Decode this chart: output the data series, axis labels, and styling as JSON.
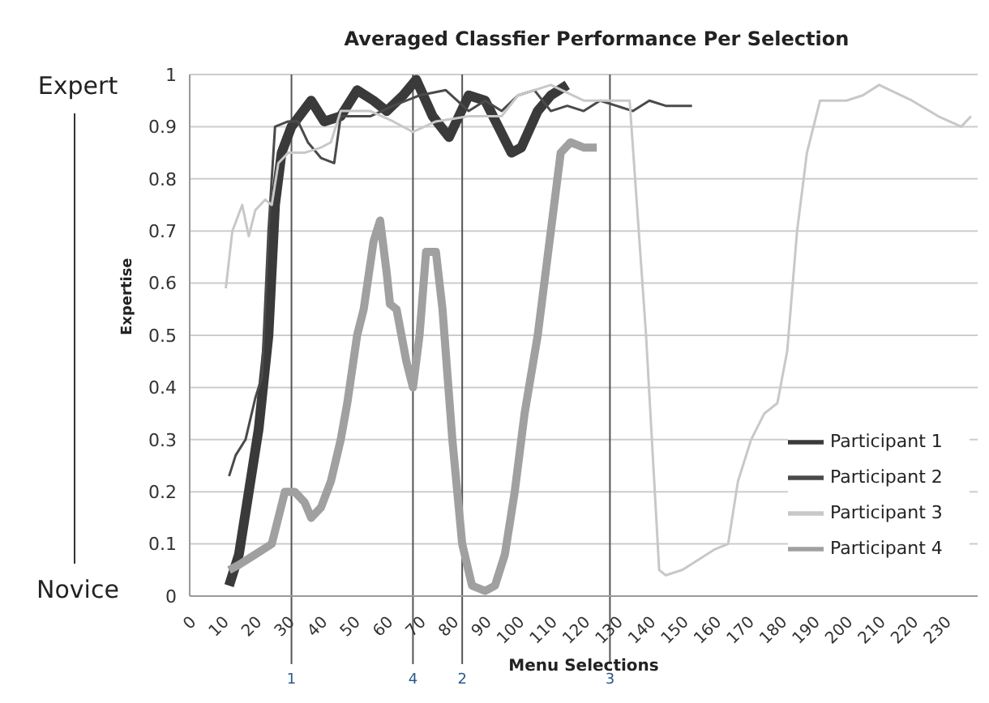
{
  "chart_data": {
    "type": "line",
    "title": "Averaged Classfier Performance Per Selection",
    "xlabel": "Menu Selections",
    "ylabel": "Expertise",
    "annotations": [
      "Expert",
      "Novice",
      {
        "text": "1",
        "x": 31
      },
      {
        "text": "4",
        "x": 68
      },
      {
        "text": "2",
        "x": 83
      },
      "3"
    ],
    "xlim": [
      0,
      240
    ],
    "xticks": [
      0,
      10,
      20,
      30,
      40,
      50,
      60,
      70,
      80,
      90,
      100,
      110,
      120,
      130,
      140,
      150,
      160,
      170,
      180,
      190,
      200,
      210,
      220,
      230
    ],
    "ylim": [
      0,
      1
    ],
    "yticks": [
      0,
      0.1,
      0.2,
      0.3,
      0.4,
      0.5,
      0.6,
      0.7,
      0.8,
      0.9,
      1
    ],
    "grid": "y",
    "legend": "bottom right",
    "marker": "none",
    "ref_lines": [
      {
        "axis": "x",
        "value": 31,
        "color": "#555555"
      },
      {
        "axis": "x",
        "value": 68,
        "color": "#555555"
      },
      {
        "axis": "x",
        "value": 83,
        "color": "#555555"
      },
      {
        "axis": "x",
        "value": 128,
        "color": "#555555"
      }
    ],
    "series": [
      {
        "name": "Participant 1",
        "color": "#3a3a3a",
        "x": [
          12,
          15,
          18,
          21,
          24,
          26,
          28,
          31,
          37,
          41,
          46,
          51,
          56,
          60,
          65,
          69,
          74,
          79,
          85,
          90,
          94,
          98,
          101,
          106,
          110,
          115
        ],
        "values": [
          0.02,
          0.08,
          0.2,
          0.32,
          0.5,
          0.75,
          0.85,
          0.9,
          0.95,
          0.91,
          0.92,
          0.97,
          0.95,
          0.93,
          0.96,
          0.99,
          0.92,
          0.88,
          0.96,
          0.95,
          0.9,
          0.85,
          0.86,
          0.93,
          0.96,
          0.98
        ]
      },
      {
        "name": "Participant 2",
        "color": "#4a4a4a",
        "x": [
          12,
          14,
          17,
          20,
          22,
          24,
          26,
          30,
          33,
          36,
          40,
          44,
          46,
          55,
          62,
          70,
          78,
          85,
          90,
          95,
          100,
          105,
          110,
          115,
          120,
          125,
          130,
          135,
          140,
          145,
          153
        ],
        "values": [
          0.23,
          0.27,
          0.3,
          0.38,
          0.42,
          0.7,
          0.9,
          0.91,
          0.91,
          0.87,
          0.84,
          0.83,
          0.92,
          0.92,
          0.94,
          0.96,
          0.97,
          0.93,
          0.95,
          0.93,
          0.96,
          0.97,
          0.93,
          0.94,
          0.93,
          0.95,
          0.94,
          0.93,
          0.95,
          0.94,
          0.94
        ]
      },
      {
        "name": "Participant 3",
        "color": "#c8c8c8",
        "x": [
          11,
          13,
          16,
          18,
          20,
          23,
          25,
          27,
          30,
          35,
          40,
          43,
          46,
          55,
          62,
          68,
          75,
          85,
          95,
          100,
          110,
          120,
          130,
          134,
          139,
          143,
          145,
          150,
          155,
          160,
          164,
          167,
          171,
          175,
          179,
          182,
          185,
          188,
          192,
          200,
          205,
          210,
          220,
          228,
          235,
          238
        ],
        "values": [
          0.59,
          0.7,
          0.75,
          0.69,
          0.74,
          0.76,
          0.75,
          0.83,
          0.85,
          0.85,
          0.86,
          0.87,
          0.93,
          0.93,
          0.91,
          0.89,
          0.91,
          0.92,
          0.92,
          0.96,
          0.98,
          0.95,
          0.95,
          0.95,
          0.5,
          0.05,
          0.04,
          0.05,
          0.07,
          0.09,
          0.1,
          0.22,
          0.3,
          0.35,
          0.37,
          0.47,
          0.7,
          0.85,
          0.95,
          0.95,
          0.96,
          0.98,
          0.95,
          0.92,
          0.9,
          0.92
        ]
      },
      {
        "name": "Participant 4",
        "color": "#a0a0a0",
        "x": [
          12,
          15,
          20,
          25,
          27,
          29,
          32,
          35,
          37,
          40,
          43,
          46,
          48,
          51,
          53,
          56,
          58,
          60,
          61,
          63,
          66,
          68,
          70,
          72,
          75,
          77,
          80,
          83,
          86,
          90,
          93,
          96,
          99,
          102,
          106,
          110,
          113,
          116,
          120,
          124
        ],
        "values": [
          0.05,
          0.06,
          0.08,
          0.1,
          0.15,
          0.2,
          0.2,
          0.18,
          0.15,
          0.17,
          0.22,
          0.3,
          0.37,
          0.5,
          0.55,
          0.68,
          0.72,
          0.62,
          0.56,
          0.55,
          0.45,
          0.4,
          0.5,
          0.66,
          0.66,
          0.55,
          0.3,
          0.1,
          0.02,
          0.01,
          0.02,
          0.08,
          0.2,
          0.35,
          0.5,
          0.7,
          0.85,
          0.87,
          0.86,
          0.86
        ]
      }
    ]
  }
}
